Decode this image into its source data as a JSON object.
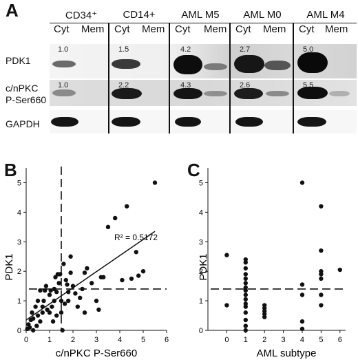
{
  "panel_a": {
    "letter": "A",
    "groups": [
      {
        "name": "CD34⁺",
        "cyt_label": "Cyt",
        "mem_label": "Mem"
      },
      {
        "name": "CD14+",
        "cyt_label": "Cyt",
        "mem_label": "Mem"
      },
      {
        "name": "AML M5",
        "cyt_label": "Cyt",
        "mem_label": "Mem"
      },
      {
        "name": "AML M0",
        "cyt_label": "Cyt",
        "mem_label": "Mem"
      },
      {
        "name": "AML M4",
        "cyt_label": "Cyt",
        "mem_label": "Mem"
      }
    ],
    "rows": [
      {
        "label_line1": "PDK1",
        "label_line2": "",
        "quant": [
          "1.0",
          "1.5",
          "4.2",
          "2.7",
          "5.0"
        ]
      },
      {
        "label_line1": "c/nPKC",
        "label_line2": "P-Ser660",
        "quant": [
          "1.0",
          "2.2",
          "4.3",
          "2.6",
          "5.5"
        ]
      },
      {
        "label_line1": "GAPDH",
        "label_line2": "",
        "quant": [
          "",
          "",
          "",
          "",
          ""
        ]
      }
    ]
  },
  "chart_data": [
    {
      "panel": "B",
      "type": "scatter",
      "xlabel": "c/nPKC P-Ser660",
      "ylabel": "PDK1",
      "xlim": [
        0,
        6
      ],
      "ylim": [
        0,
        5.5
      ],
      "xticks": [
        "0",
        "1",
        "2",
        "3",
        "4",
        "5",
        "6"
      ],
      "yticks": [
        "0",
        "1",
        "2",
        "3",
        "4",
        "5"
      ],
      "annotation": "R² = 0.5172",
      "fit_line": {
        "x": [
          0,
          5.5
        ],
        "y": [
          0.35,
          3.35
        ]
      },
      "dashed_h": 1.4,
      "dashed_v": 1.5,
      "points": [
        [
          0.05,
          0.05
        ],
        [
          0.1,
          0.2
        ],
        [
          0.15,
          0.1
        ],
        [
          0.2,
          0.35
        ],
        [
          0.25,
          0.6
        ],
        [
          0.3,
          0.4
        ],
        [
          0.3,
          0.0
        ],
        [
          0.4,
          0.8
        ],
        [
          0.45,
          0.15
        ],
        [
          0.5,
          0.5
        ],
        [
          0.5,
          1.0
        ],
        [
          0.6,
          0.3
        ],
        [
          0.6,
          1.35
        ],
        [
          0.7,
          0.8
        ],
        [
          0.7,
          0.6
        ],
        [
          0.75,
          1.0
        ],
        [
          0.8,
          1.35
        ],
        [
          0.85,
          1.5
        ],
        [
          0.9,
          0.7
        ],
        [
          1.0,
          1.2
        ],
        [
          1.0,
          0.6
        ],
        [
          1.05,
          1.35
        ],
        [
          1.1,
          0.8
        ],
        [
          1.15,
          0.3
        ],
        [
          1.2,
          1.4
        ],
        [
          1.2,
          1.0
        ],
        [
          1.25,
          1.8
        ],
        [
          1.3,
          0.5
        ],
        [
          1.3,
          1.3
        ],
        [
          1.35,
          1.9
        ],
        [
          1.4,
          1.6
        ],
        [
          1.45,
          1.9
        ],
        [
          1.5,
          1.0
        ],
        [
          1.5,
          0.6
        ],
        [
          1.55,
          0.0
        ],
        [
          1.6,
          2.25
        ],
        [
          1.65,
          0.9
        ],
        [
          1.7,
          1.7
        ],
        [
          1.75,
          1.55
        ],
        [
          1.8,
          1.3
        ],
        [
          1.8,
          1.0
        ],
        [
          1.9,
          2.5
        ],
        [
          1.9,
          1.95
        ],
        [
          2.0,
          1.5
        ],
        [
          2.1,
          1.25
        ],
        [
          2.2,
          0.8
        ],
        [
          2.3,
          1.1
        ],
        [
          2.4,
          1.4
        ],
        [
          2.5,
          1.95
        ],
        [
          2.5,
          0.6
        ],
        [
          2.6,
          2.1
        ],
        [
          2.8,
          1.6
        ],
        [
          3.0,
          1.0
        ],
        [
          3.1,
          0.7
        ],
        [
          3.2,
          1.8
        ],
        [
          3.3,
          1.8
        ],
        [
          3.5,
          3.5
        ],
        [
          3.8,
          3.8
        ],
        [
          4.1,
          1.7
        ],
        [
          4.3,
          4.2
        ],
        [
          4.5,
          1.75
        ],
        [
          4.7,
          2.65
        ],
        [
          4.8,
          1.85
        ],
        [
          5.0,
          2.0
        ],
        [
          5.5,
          5.0
        ]
      ]
    },
    {
      "panel": "C",
      "type": "scatter",
      "xlabel": "AML subtype",
      "ylabel": "PDK1",
      "xlim": [
        -1,
        6.3
      ],
      "ylim": [
        0,
        5.5
      ],
      "xticks": [
        "0",
        "1",
        "2",
        "3",
        "4",
        "5",
        "6"
      ],
      "yticks": [
        "0",
        "1",
        "2",
        "3",
        "4",
        "5"
      ],
      "dashed_h": 1.4,
      "points": [
        [
          0,
          2.55
        ],
        [
          0,
          0.85
        ],
        [
          1,
          2.4
        ],
        [
          1,
          2.3
        ],
        [
          1,
          2.1
        ],
        [
          1,
          1.9
        ],
        [
          1,
          1.75
        ],
        [
          1,
          1.6
        ],
        [
          1,
          1.45
        ],
        [
          1,
          1.35
        ],
        [
          1,
          1.2
        ],
        [
          1,
          1.05
        ],
        [
          1,
          0.9
        ],
        [
          1,
          0.8
        ],
        [
          1,
          0.6
        ],
        [
          1,
          0.35
        ],
        [
          1,
          0.15
        ],
        [
          1,
          0.0
        ],
        [
          2,
          0.85
        ],
        [
          2,
          0.75
        ],
        [
          2,
          0.65
        ],
        [
          2,
          0.55
        ],
        [
          2,
          0.45
        ],
        [
          4,
          5.0
        ],
        [
          4,
          1.55
        ],
        [
          4,
          1.2
        ],
        [
          4,
          0.3
        ],
        [
          4,
          0.05
        ],
        [
          5,
          4.2
        ],
        [
          5,
          2.7
        ],
        [
          5,
          2.0
        ],
        [
          5,
          1.9
        ],
        [
          5,
          1.75
        ],
        [
          5,
          1.2
        ],
        [
          5,
          0.85
        ],
        [
          6,
          2.05
        ]
      ]
    }
  ]
}
